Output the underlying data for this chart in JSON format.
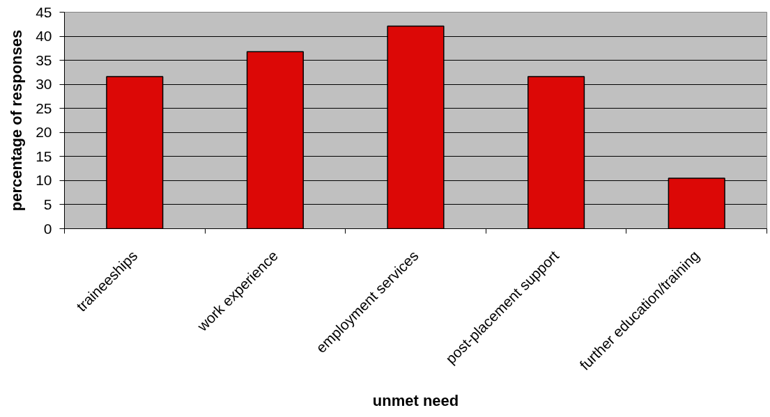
{
  "chart_data": {
    "type": "bar",
    "xlabel": "unmet need",
    "ylabel": "percentage of responses",
    "categories": [
      "traineeships",
      "work experience",
      "employment services",
      "post-placement support",
      "further education/training"
    ],
    "values": [
      31.6,
      36.8,
      42.1,
      31.6,
      10.5
    ],
    "color": "#dc0806",
    "ylim": [
      0,
      45
    ],
    "yticks": [
      0,
      5,
      10,
      15,
      20,
      25,
      30,
      35,
      40,
      45
    ],
    "grid": "y"
  }
}
